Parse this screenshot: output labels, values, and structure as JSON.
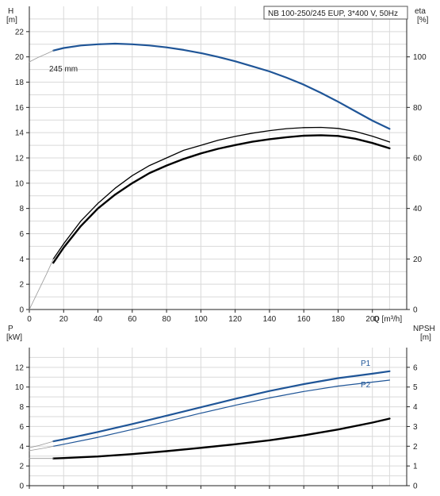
{
  "title": "NB 100-250/245 EUP, 3*400 V, 50Hz",
  "colors": {
    "blue": "#1f5597",
    "black": "#000000",
    "grid": "#d9d9d9",
    "axis": "#222222"
  },
  "chart_data": [
    {
      "type": "line",
      "name": "top",
      "x_axis": {
        "label": "Q [m³/h]",
        "range": [
          0,
          220
        ],
        "ticks": [
          0,
          20,
          40,
          60,
          80,
          100,
          120,
          140,
          160,
          180,
          200
        ]
      },
      "y_left": {
        "label_top": "H",
        "label_unit": "[m]",
        "range": [
          0,
          24
        ],
        "ticks": [
          0,
          2,
          4,
          6,
          8,
          10,
          12,
          14,
          16,
          18,
          20,
          22
        ]
      },
      "y_right": {
        "label_top": "eta",
        "label_unit": "[%]",
        "range": [
          0,
          120
        ],
        "ticks": [
          0,
          20,
          40,
          60,
          80,
          100
        ]
      },
      "grid": true,
      "series": [
        {
          "name": "245 mm",
          "label": "245 mm",
          "axis": "left",
          "color": "#1f5597",
          "width": 2.2,
          "x": [
            14,
            20,
            30,
            40,
            50,
            60,
            70,
            80,
            90,
            100,
            110,
            120,
            130,
            140,
            150,
            160,
            170,
            180,
            190,
            200,
            210
          ],
          "y": [
            20.5,
            20.7,
            20.9,
            21.0,
            21.05,
            21.0,
            20.9,
            20.75,
            20.55,
            20.3,
            20.0,
            19.65,
            19.25,
            18.85,
            18.35,
            17.8,
            17.15,
            16.45,
            15.7,
            14.95,
            14.3
          ]
        },
        {
          "axis": "left",
          "color": "#999999",
          "width": 0.8,
          "x": [
            0,
            5,
            10,
            14
          ],
          "y": [
            19.6,
            19.95,
            20.25,
            20.5
          ]
        },
        {
          "axis": "right",
          "color": "#000000",
          "width": 1.3,
          "x": [
            14,
            20,
            30,
            40,
            50,
            60,
            70,
            80,
            90,
            100,
            110,
            120,
            130,
            140,
            150,
            160,
            170,
            180,
            190,
            200,
            210
          ],
          "y": [
            20,
            26,
            35,
            42,
            48,
            53,
            57,
            60,
            63,
            65,
            67,
            68.5,
            69.8,
            70.8,
            71.6,
            72,
            72.1,
            71.7,
            70.5,
            68.6,
            66.3
          ]
        },
        {
          "axis": "right",
          "color": "#000000",
          "width": 2.4,
          "x": [
            14,
            20,
            30,
            40,
            50,
            60,
            70,
            80,
            90,
            100,
            110,
            120,
            130,
            140,
            150,
            160,
            170,
            180,
            190,
            200,
            210
          ],
          "y": [
            18.5,
            24.5,
            33,
            40,
            45.5,
            50,
            54,
            57,
            59.6,
            61.8,
            63.6,
            65.1,
            66.4,
            67.4,
            68.2,
            68.8,
            69.0,
            68.7,
            67.6,
            65.9,
            63.8
          ]
        },
        {
          "axis": "right",
          "color": "#999999",
          "width": 0.8,
          "x": [
            0,
            5,
            10,
            14
          ],
          "y": [
            0,
            7,
            14,
            20
          ]
        }
      ]
    },
    {
      "type": "line",
      "name": "bottom",
      "y_left": {
        "label_top": "P",
        "label_unit": "[kW]",
        "range": [
          0,
          14
        ],
        "ticks": [
          0,
          2,
          4,
          6,
          8,
          10,
          12
        ]
      },
      "y_right": {
        "label_top": "NPSH",
        "label_unit": "[m]",
        "range": [
          0,
          7
        ],
        "ticks": [
          0,
          1,
          2,
          3,
          4,
          5,
          6
        ]
      },
      "grid": true,
      "series": [
        {
          "name": "P1",
          "label": "P1",
          "axis": "left",
          "color": "#1f5597",
          "width": 2.2,
          "x": [
            14,
            20,
            40,
            60,
            80,
            100,
            120,
            140,
            160,
            180,
            200,
            210
          ],
          "y": [
            4.5,
            4.7,
            5.45,
            6.25,
            7.1,
            7.95,
            8.8,
            9.6,
            10.3,
            10.9,
            11.35,
            11.6
          ]
        },
        {
          "name": "P2",
          "label": "P2",
          "axis": "left",
          "color": "#1f5597",
          "width": 1.2,
          "x": [
            14,
            20,
            40,
            60,
            80,
            100,
            120,
            140,
            160,
            180,
            200,
            210
          ],
          "y": [
            4.0,
            4.2,
            4.9,
            5.7,
            6.5,
            7.35,
            8.15,
            8.9,
            9.55,
            10.1,
            10.5,
            10.7
          ]
        },
        {
          "axis": "left",
          "color": "#999999",
          "width": 0.8,
          "x": [
            0,
            5,
            10,
            14
          ],
          "y": [
            3.85,
            4.05,
            4.3,
            4.5
          ]
        },
        {
          "axis": "left",
          "color": "#999999",
          "width": 0.8,
          "x": [
            0,
            5,
            10,
            14
          ],
          "y": [
            3.55,
            3.7,
            3.85,
            4.0
          ]
        },
        {
          "axis": "right",
          "color": "#000000",
          "width": 2.4,
          "x": [
            14,
            20,
            40,
            60,
            80,
            100,
            120,
            140,
            160,
            180,
            200,
            210
          ],
          "y": [
            1.38,
            1.4,
            1.48,
            1.6,
            1.75,
            1.92,
            2.1,
            2.3,
            2.55,
            2.85,
            3.2,
            3.4
          ]
        },
        {
          "axis": "right",
          "color": "#999999",
          "width": 0.8,
          "x": [
            0,
            14
          ],
          "y": [
            1.38,
            1.38
          ]
        }
      ]
    }
  ]
}
